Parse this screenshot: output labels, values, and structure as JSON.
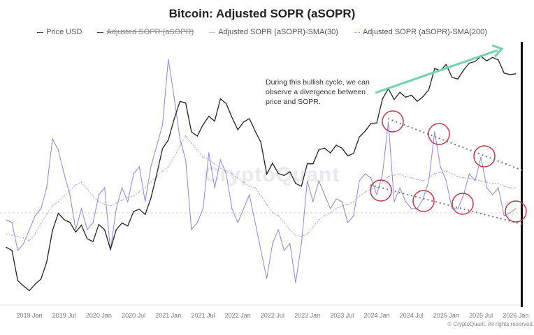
{
  "chart_data": {
    "type": "line",
    "title": "Bitcoin: Adjusted SOPR (aSOPR)",
    "legend": [
      {
        "name": "Price USD",
        "color": "#333333",
        "hidden": false
      },
      {
        "name": "Adjusted SOPR (aSOPR)",
        "color": "#555555",
        "hidden": true
      },
      {
        "name": "Adjusted SOPR (aSOPR)-SMA(30)",
        "color": "#8a86e8",
        "hidden": false
      },
      {
        "name": "Adjusted SOPR (aSOPR)-SMA(200)",
        "color": "#8a86e8",
        "hidden": false
      }
    ],
    "legend_position": "top",
    "x_tick_labels": [
      "2019 Jan",
      "2019 Jul",
      "2020 Jan",
      "2020 Jul",
      "2021 Jan",
      "2021 Jul",
      "2022 Jan",
      "2022 Jul",
      "2023 Jan",
      "2023 Jul",
      "2024 Jan",
      "2024 Jul",
      "2025 Jan",
      "2025 Jul",
      "2026 Jan"
    ],
    "x": [
      "2018-09",
      "2018-10",
      "2018-11",
      "2018-12",
      "2019-01",
      "2019-02",
      "2019-03",
      "2019-04",
      "2019-05",
      "2019-06",
      "2019-07",
      "2019-08",
      "2019-09",
      "2019-10",
      "2019-11",
      "2019-12",
      "2020-01",
      "2020-02",
      "2020-03",
      "2020-04",
      "2020-05",
      "2020-06",
      "2020-07",
      "2020-08",
      "2020-09",
      "2020-10",
      "2020-11",
      "2020-12",
      "2021-01",
      "2021-02",
      "2021-03",
      "2021-04",
      "2021-05",
      "2021-06",
      "2021-07",
      "2021-08",
      "2021-09",
      "2021-10",
      "2021-11",
      "2021-12",
      "2022-01",
      "2022-02",
      "2022-03",
      "2022-04",
      "2022-05",
      "2022-06",
      "2022-07",
      "2022-08",
      "2022-09",
      "2022-10",
      "2022-11",
      "2022-12",
      "2023-01",
      "2023-02",
      "2023-03",
      "2023-04",
      "2023-05",
      "2023-06",
      "2023-07",
      "2023-08",
      "2023-09",
      "2023-10",
      "2023-11",
      "2023-12",
      "2024-01",
      "2024-02",
      "2024-03",
      "2024-04",
      "2024-05",
      "2024-06",
      "2024-07",
      "2024-08",
      "2024-09",
      "2024-10",
      "2024-11",
      "2024-12",
      "2025-01",
      "2025-02",
      "2025-03",
      "2025-04",
      "2025-05",
      "2025-06",
      "2025-07",
      "2025-08",
      "2025-09",
      "2025-10",
      "2025-11",
      "2025-12",
      "2026-01"
    ],
    "price_scale": "log",
    "series": [
      {
        "name": "Price USD",
        "values": [
          6600,
          6300,
          4000,
          3700,
          3450,
          3800,
          4100,
          5300,
          8500,
          11000,
          10000,
          9600,
          8300,
          9200,
          7500,
          7200,
          9300,
          8600,
          6400,
          8600,
          9500,
          9100,
          11300,
          11700,
          10800,
          13800,
          19700,
          29000,
          33000,
          45000,
          58800,
          57700,
          37300,
          35000,
          41500,
          47100,
          43800,
          61300,
          57000,
          46300,
          38500,
          43200,
          45500,
          37700,
          31800,
          19800,
          23300,
          20000,
          19400,
          20500,
          17200,
          16500,
          23100,
          23100,
          28500,
          29200,
          27200,
          30500,
          29200,
          26000,
          27000,
          34500,
          37700,
          42300,
          42600,
          61200,
          71300,
          60600,
          67500,
          62700,
          64600,
          59000,
          63300,
          70200,
          96400,
          93400,
          102400,
          84300,
          82500,
          94200,
          104600,
          107100,
          115700,
          108200,
          114000,
          109500,
          90000,
          88000,
          89000
        ]
      },
      {
        "name": "Adjusted SOPR (aSOPR)-SMA(30)",
        "values": [
          0.995,
          0.993,
          0.973,
          0.978,
          0.988,
          0.998,
          1.003,
          1.018,
          1.053,
          1.045,
          1.028,
          1.013,
          0.988,
          1.003,
          0.988,
          0.993,
          1.013,
          1.018,
          0.973,
          1.003,
          1.018,
          1.008,
          1.028,
          1.033,
          1.008,
          1.033,
          1.048,
          1.063,
          1.11,
          1.083,
          1.053,
          1.038,
          0.988,
          0.993,
          1.003,
          1.043,
          1.018,
          1.038,
          1.028,
          1.003,
          0.993,
          1.003,
          1.013,
          0.993,
          0.973,
          0.953,
          0.978,
          0.988,
          0.973,
          0.978,
          0.95,
          0.978,
          1.023,
          1.008,
          1.023,
          1.013,
          1.003,
          1.01,
          1.008,
          0.993,
          0.998,
          1.023,
          1.028,
          1.025,
          1.013,
          1.028,
          1.065,
          1.008,
          1.018,
          1.008,
          1.003,
          1.003,
          1.01,
          1.023,
          1.058,
          1.033,
          1.023,
          1.003,
          1.003,
          1.013,
          1.028,
          1.023,
          1.04,
          1.018,
          1.013,
          1.018,
          0.998,
          1.0,
          1.003
        ]
      },
      {
        "name": "Adjusted SOPR (aSOPR)-SMA(200)",
        "values": [
          0.985,
          0.984,
          0.983,
          0.982,
          0.98,
          0.985,
          0.992,
          0.999,
          1.005,
          1.008,
          1.012,
          1.016,
          1.02,
          1.022,
          1.017,
          1.012,
          1.008,
          1.006,
          1.005,
          1.007,
          1.009,
          1.011,
          1.012,
          1.015,
          1.018,
          1.022,
          1.026,
          1.03,
          1.033,
          1.04,
          1.048,
          1.055,
          1.05,
          1.045,
          1.04,
          1.038,
          1.035,
          1.032,
          1.03,
          1.028,
          1.025,
          1.022,
          1.019,
          1.018,
          1.012,
          1.006,
          1.0,
          0.998,
          0.993,
          0.988,
          0.984,
          0.983,
          0.985,
          0.99,
          0.995,
          0.998,
          1.0,
          1.003,
          1.005,
          1.006,
          1.008,
          1.012,
          1.015,
          1.017,
          1.018,
          1.022,
          1.026,
          1.027,
          1.028,
          1.026,
          1.025,
          1.024,
          1.023,
          1.025,
          1.028,
          1.029,
          1.03,
          1.028,
          1.026,
          1.025,
          1.025,
          1.024,
          1.023,
          1.022,
          1.021,
          1.021,
          1.019,
          1.018,
          1.018
        ]
      }
    ],
    "reference_line": 1.0,
    "grid": false,
    "annotations": {
      "text": "During this bullish cycle, we can observe a divergence between price and SOPR.",
      "arrow_color": "#6fd4a8",
      "circle_color": "#c0394b"
    }
  },
  "watermark": "CryptoQuant",
  "copyright": "© CryptoQuant. All rights reserved."
}
